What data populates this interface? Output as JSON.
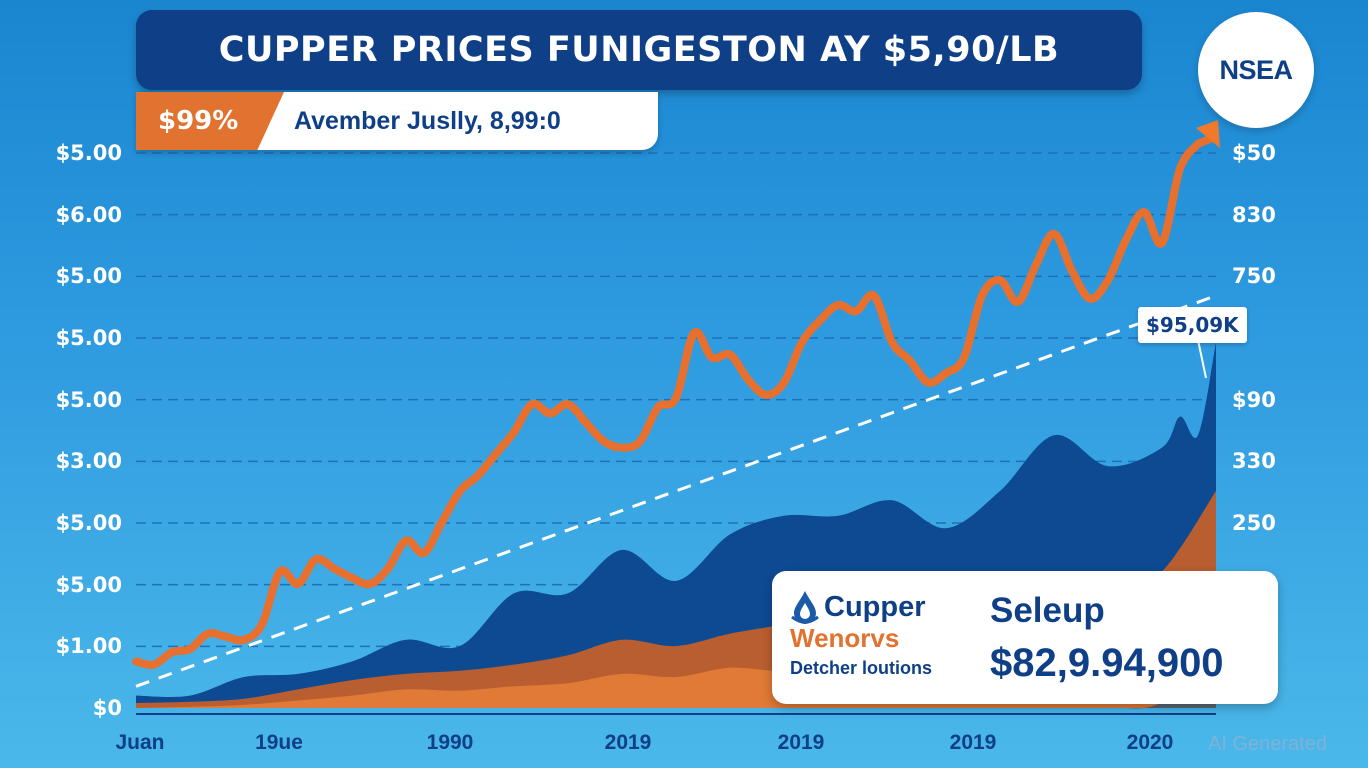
{
  "header": {
    "title": "CUPPER PRICES FUNIGESTON AY $5,90/LB",
    "badge": "$99%",
    "subtitle": "Avember Juslly, 8,99:0"
  },
  "logo": {
    "text": "NSEA"
  },
  "callout": {
    "text": "$95,09K"
  },
  "info_card": {
    "brand_icon": "water-drop-icon",
    "brand_name": "Cupper",
    "brand_sub1": "Wenorvs",
    "brand_sub2": "Detcher loutions",
    "label": "Seleup",
    "value": "$82,9.94,900"
  },
  "watermark": "AI Generated",
  "colors": {
    "title_bg": "#0f3f86",
    "line": "#e8702f",
    "area_navy": "#0d4a92",
    "area_rust": "#b85e30",
    "area_orange": "#e07a36",
    "area_slate": "#566571",
    "trend": "#ffffff"
  },
  "chart_data": {
    "type": "line",
    "title": "CUPPER PRICES FUNIGESTON AY $5,90/LB",
    "xlabel": "",
    "ylabel": "",
    "grid": true,
    "legend": "none",
    "y_ticks_left": [
      "$5.00",
      "$6.00",
      "$5.00",
      "$5.00",
      "$5.00",
      "$3.00",
      "$5.00",
      "$5.00",
      "$1.00",
      "$0"
    ],
    "y_ticks_right": [
      "$50",
      "830",
      "750",
      "",
      "$90",
      "330",
      "250"
    ],
    "x_ticks": [
      "Juan",
      "19ue",
      "1990",
      "2019",
      "2019",
      "2019",
      "2020"
    ],
    "x_range": [
      0,
      60
    ],
    "ylim": [
      0,
      9
    ],
    "series": [
      {
        "name": "price",
        "type": "line",
        "x": [
          0,
          1,
          2,
          3,
          4,
          5,
          6,
          7,
          8,
          9,
          10,
          11,
          12,
          13,
          14,
          15,
          16,
          17,
          18,
          19,
          20,
          21,
          22,
          23,
          24,
          25,
          26,
          27,
          28,
          29,
          30,
          31,
          32,
          33,
          34,
          35,
          36,
          37,
          38,
          39,
          40,
          41,
          42,
          43,
          44,
          45,
          46,
          47,
          48,
          49,
          50,
          51,
          52,
          53,
          54,
          55,
          56,
          57,
          58,
          59,
          60
        ],
        "values": [
          0.75,
          0.7,
          0.9,
          0.95,
          1.2,
          1.15,
          1.1,
          1.35,
          2.2,
          2.0,
          2.4,
          2.25,
          2.1,
          2.0,
          2.25,
          2.7,
          2.5,
          3.0,
          3.5,
          3.75,
          4.1,
          4.45,
          4.9,
          4.75,
          4.9,
          4.6,
          4.3,
          4.2,
          4.3,
          4.85,
          5.0,
          6.05,
          5.65,
          5.7,
          5.3,
          5.05,
          5.25,
          5.9,
          6.25,
          6.5,
          6.4,
          6.65,
          5.9,
          5.6,
          5.25,
          5.4,
          5.65,
          6.65,
          6.9,
          6.55,
          7.15,
          7.65,
          7.05,
          6.6,
          6.9,
          7.55,
          8.0,
          7.5,
          8.7,
          9.1,
          8.2
        ]
      },
      {
        "name": "trend",
        "type": "dashed-line",
        "x": [
          0,
          60
        ],
        "values": [
          0.35,
          6.65
        ]
      },
      {
        "name": "navy-area",
        "type": "area",
        "x": [
          0,
          3,
          6,
          9,
          12,
          15,
          18,
          21,
          24,
          27,
          30,
          33,
          36,
          39,
          42,
          45,
          48,
          51,
          54,
          57,
          58,
          59,
          60
        ],
        "values": [
          0.2,
          0.2,
          0.5,
          0.55,
          0.75,
          1.1,
          1.0,
          1.85,
          1.85,
          2.55,
          2.05,
          2.8,
          3.1,
          3.1,
          3.35,
          2.9,
          3.5,
          4.4,
          3.9,
          4.2,
          4.7,
          4.4,
          5.9
        ]
      },
      {
        "name": "rust-area",
        "type": "area",
        "x": [
          0,
          3,
          6,
          9,
          12,
          15,
          18,
          21,
          24,
          27,
          30,
          33,
          36,
          39,
          42,
          45,
          48,
          51,
          54,
          57,
          60
        ],
        "values": [
          0.08,
          0.1,
          0.15,
          0.3,
          0.45,
          0.55,
          0.6,
          0.7,
          0.85,
          1.1,
          1.0,
          1.2,
          1.35,
          1.55,
          1.65,
          1.75,
          1.9,
          2.0,
          1.7,
          2.2,
          3.5
        ]
      },
      {
        "name": "orange-area",
        "type": "area",
        "x": [
          0,
          3,
          6,
          9,
          12,
          15,
          18,
          21,
          24,
          27,
          30,
          33,
          36,
          39,
          42,
          45,
          48,
          51,
          54,
          57,
          60
        ],
        "values": [
          0.0,
          0.02,
          0.05,
          0.12,
          0.2,
          0.3,
          0.28,
          0.35,
          0.4,
          0.55,
          0.5,
          0.65,
          0.6,
          0.75,
          0.8,
          0.7,
          0.9,
          0.95,
          0.85,
          1.0,
          1.2
        ]
      },
      {
        "name": "slate-area",
        "type": "area",
        "x": [
          55,
          56,
          57,
          58,
          59,
          60
        ],
        "values": [
          0,
          0,
          0.1,
          0.4,
          0.9,
          1.1
        ]
      }
    ],
    "annotations": [
      "$95,09K"
    ]
  }
}
